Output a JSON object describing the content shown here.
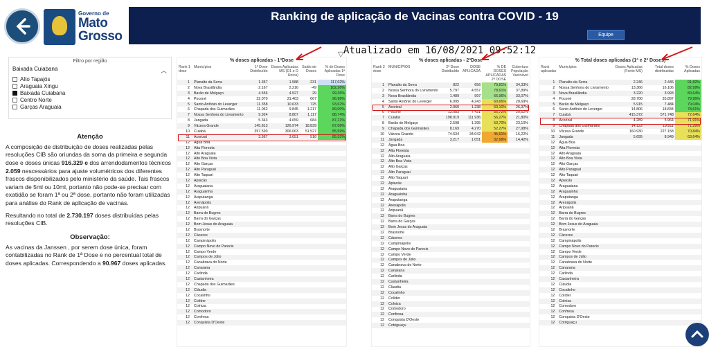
{
  "header": {
    "gov_small": "Governo de",
    "gov_line1": "Mato",
    "gov_line2": "Grosso",
    "title": "Ranking de aplicação de Vacinas contra COVID - 19",
    "equipe_label": "Equipe",
    "updated": "Atualizado em 16/08/2021 09:52:12"
  },
  "filter": {
    "title": "Filtro por região",
    "selected": "Baixada Cuiabana",
    "items": [
      {
        "label": "Alto Tapajós",
        "checked": false
      },
      {
        "label": "Araguaia Xingu",
        "checked": false
      },
      {
        "label": "Baixada Cuiabana",
        "checked": true
      },
      {
        "label": "Centro Norte",
        "checked": false
      },
      {
        "label": "Garças Araguaia",
        "checked": false
      }
    ]
  },
  "notes": {
    "atencao_title": "Atenção",
    "p1_a": "A composição de distribuição de doses realizadas pelas resoluções CIB são oriundas da soma da primeira e segunda dose e doses únicas ",
    "p1_b": "916.329 e",
    "p1_c": " dos arrendodamentos técnicos ",
    "p1_d": "2.059",
    "p1_e": " nescessários para ajuste volumétricos  dos diferentes frascos disponibilizados pelo ministério da saúde. Tais frascos variam de 5ml ou 10ml, portanto não pode-se precisar com exatidão se foram 1ª ou 2ª dose, portanto não foram utilizadas para análise do Rank de aplicação de vacinas.",
    "p2_a": "Resultando no total de ",
    "p2_b": "2.730.197",
    "p2_c": " doses distribuídas pelas resoluções CIB.",
    "obs_title": "Observação:",
    "p3_a": "  As vacinas da Janssen , por serem dose única, foram contabilizadas no Rank de 1ª Dose e no percentual total de doses aplicadas. Correspondendo a ",
    "p3_b": "90.967",
    "p3_c": " doses aplicadas."
  },
  "table1": {
    "title": "% doses aplicadas - 1ªDose",
    "headers": [
      "Rank 1 dose",
      "Municípios",
      "1ª Dose Distribuído",
      "Doses Aplicadas MS (D1 e D Única)",
      "Saldo de Doses",
      "% de Doses Aplicadas 1ª Dose"
    ],
    "rows": [
      [
        "1",
        "Planalto da Serra",
        "1.357",
        "1.588",
        "-231",
        "117,02%",
        "c-blue"
      ],
      [
        "2",
        "Nova Brasilândia",
        "2.167",
        "2.216",
        "-49",
        "102,26%",
        "c-green"
      ],
      [
        "3",
        "Barão de Melgaço",
        "4.556",
        "4.527",
        "29",
        "99,36%",
        "c-green"
      ],
      [
        "4",
        "Poconé",
        "22.070",
        "21.403",
        "667",
        "96,98%",
        "c-green"
      ],
      [
        "5",
        "Santo Antônio do Leverger",
        "11.358",
        "10.633",
        "725",
        "93,62%",
        "c-green"
      ],
      [
        "6",
        "Chapada dos Guimarães",
        "11.062",
        "9.845",
        "1.217",
        "89,00%",
        "c-green"
      ],
      [
        "7",
        "Nossa Senhora do Livramento",
        "9.924",
        "8.807",
        "1.117",
        "88,74%",
        "c-green"
      ],
      [
        "8",
        "Jangada",
        "5.343",
        "4.659",
        "684",
        "87,21%",
        "c-green"
      ],
      [
        "9",
        "Várzea Grande",
        "145.813",
        "126.974",
        "18.839",
        "87,08%",
        "c-green"
      ],
      [
        "10",
        "Cuiabá",
        "357.590",
        "306.063",
        "51.527",
        "85,59%",
        "c-green"
      ],
      [
        "11",
        "Acorizal",
        "3.567",
        "3.051",
        "516",
        "85,53%",
        "c-green"
      ],
      [
        "12",
        "Água Boa",
        "",
        "",
        "",
        "",
        ""
      ],
      [
        "12",
        "Alta Floresta",
        "",
        "",
        "",
        "",
        ""
      ],
      [
        "12",
        "Alto Araguaia",
        "",
        "",
        "",
        "",
        ""
      ],
      [
        "12",
        "Alto Boa Vista",
        "",
        "",
        "",
        "",
        ""
      ],
      [
        "12",
        "Alto Garças",
        "",
        "",
        "",
        "",
        ""
      ],
      [
        "12",
        "Alto Paraguai",
        "",
        "",
        "",
        "",
        ""
      ],
      [
        "12",
        "Alto Taquari",
        "",
        "",
        "",
        "",
        ""
      ],
      [
        "12",
        "Apiacás",
        "",
        "",
        "",
        "",
        ""
      ],
      [
        "12",
        "Araguaiana",
        "",
        "",
        "",
        "",
        ""
      ],
      [
        "12",
        "Araguainha",
        "",
        "",
        "",
        "",
        ""
      ],
      [
        "12",
        "Araputanga",
        "",
        "",
        "",
        "",
        ""
      ],
      [
        "12",
        "Arenápolis",
        "",
        "",
        "",
        "",
        ""
      ],
      [
        "12",
        "Aripuanã",
        "",
        "",
        "",
        "",
        ""
      ],
      [
        "12",
        "Barra do Bugres",
        "",
        "",
        "",
        "",
        ""
      ],
      [
        "12",
        "Barra do Garças",
        "",
        "",
        "",
        "",
        ""
      ],
      [
        "12",
        "Bom Jesus do Araguaia",
        "",
        "",
        "",
        "",
        ""
      ],
      [
        "12",
        "Brasnorte",
        "",
        "",
        "",
        "",
        ""
      ],
      [
        "12",
        "Cáceres",
        "",
        "",
        "",
        "",
        ""
      ],
      [
        "12",
        "Campinápolis",
        "",
        "",
        "",
        "",
        ""
      ],
      [
        "12",
        "Campo Novo do Parecis",
        "",
        "",
        "",
        "",
        ""
      ],
      [
        "12",
        "Campo Verde",
        "",
        "",
        "",
        "",
        ""
      ],
      [
        "12",
        "Campos de Júlio",
        "",
        "",
        "",
        "",
        ""
      ],
      [
        "12",
        "Canabrava do Norte",
        "",
        "",
        "",
        "",
        ""
      ],
      [
        "12",
        "Canarana",
        "",
        "",
        "",
        "",
        ""
      ],
      [
        "12",
        "Carlinda",
        "",
        "",
        "",
        "",
        ""
      ],
      [
        "12",
        "Castanheira",
        "",
        "",
        "",
        "",
        ""
      ],
      [
        "12",
        "Chapada dos Guimarães",
        "",
        "",
        "",
        "",
        ""
      ],
      [
        "12",
        "Cláudia",
        "",
        "",
        "",
        "",
        ""
      ],
      [
        "12",
        "Cocalinho",
        "",
        "",
        "",
        "",
        ""
      ],
      [
        "12",
        "Colíder",
        "",
        "",
        "",
        "",
        ""
      ],
      [
        "12",
        "Colniza",
        "",
        "",
        "",
        "",
        ""
      ],
      [
        "12",
        "Comodoro",
        "",
        "",
        "",
        "",
        ""
      ],
      [
        "12",
        "Confresa",
        "",
        "",
        "",
        "",
        ""
      ],
      [
        "12",
        "Conquista D'Oeste",
        "",
        "",
        "",
        "",
        ""
      ]
    ]
  },
  "table2": {
    "title": "% doses aplicadas - 2ªDose",
    "headers": [
      "Rank 2 dose",
      "MUNICÍPIOS",
      "2ª Dose Distribuído",
      "DOSE APLICADA",
      "% DE DOSES APLICADAS 2ª DOSE",
      "Cobertura População Vacinável"
    ],
    "rows": [
      [
        "1",
        "Planalto da Serra",
        "822",
        "656",
        "79,81%",
        "34,33%",
        "c-lgreen"
      ],
      [
        "2",
        "Nossa Senhora do Livramento",
        "5.797",
        "4.557",
        "78,61%",
        "37,89%",
        "c-lgreen"
      ],
      [
        "3",
        "Nova Brasilândia",
        "1.489",
        "997",
        "66,96%",
        "33,07%",
        "c-lgreen"
      ],
      [
        "4",
        "Santo Antônio do Leverger",
        "6.995",
        "4.243",
        "60,66%",
        "28,69%",
        "c-yellow"
      ],
      [
        "5",
        "Acorizal",
        "2.060",
        "1.238",
        "60,10%",
        "26,37%",
        "c-yellow"
      ],
      [
        "6",
        "Poconé",
        "13.083",
        "7.421",
        "56,72%",
        "20,62%",
        "c-yellow"
      ],
      [
        "7",
        "Cuiabá",
        "198.919",
        "111.936",
        "56,27%",
        "21,80%",
        "c-yellow"
      ],
      [
        "8",
        "Barão de Melgaço",
        "2.598",
        "1.395",
        "53,70%",
        "23,10%",
        "c-yellow"
      ],
      [
        "9",
        "Chapada dos Guimarães",
        "8.169",
        "4.270",
        "52,27%",
        "27,98%",
        "c-yellow"
      ],
      [
        "10",
        "Várzea Grande",
        "74.634",
        "34.042",
        "45,61%",
        "16,22%",
        "c-orange"
      ],
      [
        "11",
        "Jangada",
        "3.217",
        "1.051",
        "32,68%",
        "14,42%",
        "c-orange"
      ],
      [
        "12",
        "Água Boa",
        "",
        "",
        "",
        "",
        ""
      ],
      [
        "12",
        "Alta Floresta",
        "",
        "",
        "",
        "",
        ""
      ],
      [
        "12",
        "Alto Araguaia",
        "",
        "",
        "",
        "",
        ""
      ],
      [
        "12",
        "Alto Boa Vista",
        "",
        "",
        "",
        "",
        ""
      ],
      [
        "12",
        "Alto Garças",
        "",
        "",
        "",
        "",
        ""
      ],
      [
        "12",
        "Alto Paraguai",
        "",
        "",
        "",
        "",
        ""
      ],
      [
        "12",
        "Alto Taquari",
        "",
        "",
        "",
        "",
        ""
      ],
      [
        "12",
        "Apiacás",
        "",
        "",
        "",
        "",
        ""
      ],
      [
        "12",
        "Araguaiana",
        "",
        "",
        "",
        "",
        ""
      ],
      [
        "12",
        "Araguainha",
        "",
        "",
        "",
        "",
        ""
      ],
      [
        "12",
        "Araputanga",
        "",
        "",
        "",
        "",
        ""
      ],
      [
        "12",
        "Arenápolis",
        "",
        "",
        "",
        "",
        ""
      ],
      [
        "12",
        "Aripuanã",
        "",
        "",
        "",
        "",
        ""
      ],
      [
        "12",
        "Barra do Bugres",
        "",
        "",
        "",
        "",
        ""
      ],
      [
        "12",
        "Barra do Garças",
        "",
        "",
        "",
        "",
        ""
      ],
      [
        "12",
        "Bom Jesus do Araguaia",
        "",
        "",
        "",
        "",
        ""
      ],
      [
        "12",
        "Brasnorte",
        "",
        "",
        "",
        "",
        ""
      ],
      [
        "12",
        "Cáceres",
        "",
        "",
        "",
        "",
        ""
      ],
      [
        "12",
        "Campinápolis",
        "",
        "",
        "",
        "",
        ""
      ],
      [
        "12",
        "Campo Novo do Parecis",
        "",
        "",
        "",
        "",
        ""
      ],
      [
        "12",
        "Campo Verde",
        "",
        "",
        "",
        "",
        ""
      ],
      [
        "12",
        "Campos de Júlio",
        "",
        "",
        "",
        "",
        ""
      ],
      [
        "12",
        "Canabrava do Norte",
        "",
        "",
        "",
        "",
        ""
      ],
      [
        "12",
        "Canarana",
        "",
        "",
        "",
        "",
        ""
      ],
      [
        "12",
        "Carlinda",
        "",
        "",
        "",
        "",
        ""
      ],
      [
        "12",
        "Castanheira",
        "",
        "",
        "",
        "",
        ""
      ],
      [
        "12",
        "Cláudia",
        "",
        "",
        "",
        "",
        ""
      ],
      [
        "12",
        "Cocalinho",
        "",
        "",
        "",
        "",
        ""
      ],
      [
        "12",
        "Colíder",
        "",
        "",
        "",
        "",
        ""
      ],
      [
        "12",
        "Colniza",
        "",
        "",
        "",
        "",
        ""
      ],
      [
        "12",
        "Comodoro",
        "",
        "",
        "",
        "",
        ""
      ],
      [
        "12",
        "Confresa",
        "",
        "",
        "",
        "",
        ""
      ],
      [
        "12",
        "Conquista D'Oeste",
        "",
        "",
        "",
        "",
        ""
      ],
      [
        "12",
        "Cotriguaçu",
        "",
        "",
        "",
        "",
        ""
      ]
    ]
  },
  "table3": {
    "title": "% Total doses aplicadas (1ª e 2ª Doses)",
    "headers": [
      "Rank aplicadas",
      "Municípios",
      "Doses Aplicadas (Fonte MS)",
      "Total doses distribuidas",
      "% Doses Aplicadas"
    ],
    "rows": [
      [
        "1",
        "Planalto da Serra",
        "2.246",
        "2.446",
        "91,82%",
        "c-green"
      ],
      [
        "2",
        "Nossa Senhora do Livramento",
        "13.366",
        "16.106",
        "82,99%",
        "c-green"
      ],
      [
        "3",
        "Nova Brasilândia",
        "3.220",
        "3.993",
        "80,64%",
        "c-green"
      ],
      [
        "4",
        "Poconé",
        "28.700",
        "35.897",
        "79,95%",
        "c-green"
      ],
      [
        "5",
        "Barão de Melgaço",
        "5.915",
        "7.484",
        "79,04%",
        "c-green"
      ],
      [
        "6",
        "Santo Antônio do Leverger",
        "14.806",
        "18.834",
        "78,61%",
        "c-green"
      ],
      [
        "7",
        "Cuiabá",
        "415.372",
        "571.748",
        "72,64%",
        "c-yellow"
      ],
      [
        "8",
        "Acorizal",
        "4.289",
        "5.964",
        "71,91%",
        "c-yellow"
      ],
      [
        "9",
        "Chapada dos Guimarães",
        "14.122",
        "19.811",
        "71,28%",
        "c-yellow"
      ],
      [
        "10",
        "Várzea Grande",
        "160.930",
        "227.158",
        "70,84%",
        "c-yellow"
      ],
      [
        "11",
        "Jangada",
        "5.695",
        "8.949",
        "63,64%",
        "c-yellow"
      ],
      [
        "12",
        "Água Boa",
        "",
        "",
        "",
        ""
      ],
      [
        "12",
        "Alta Floresta",
        "",
        "",
        "",
        ""
      ],
      [
        "12",
        "Alto Araguaia",
        "",
        "",
        "",
        ""
      ],
      [
        "12",
        "Alto Boa Vista",
        "",
        "",
        "",
        ""
      ],
      [
        "12",
        "Alto Garças",
        "",
        "",
        "",
        ""
      ],
      [
        "12",
        "Alto Paraguai",
        "",
        "",
        "",
        ""
      ],
      [
        "12",
        "Alto Taquari",
        "",
        "",
        "",
        ""
      ],
      [
        "12",
        "Apiacás",
        "",
        "",
        "",
        ""
      ],
      [
        "12",
        "Araguaiana",
        "",
        "",
        "",
        ""
      ],
      [
        "12",
        "Araguainha",
        "",
        "",
        "",
        ""
      ],
      [
        "12",
        "Araputanga",
        "",
        "",
        "",
        ""
      ],
      [
        "12",
        "Arenápolis",
        "",
        "",
        "",
        ""
      ],
      [
        "12",
        "Aripuanã",
        "",
        "",
        "",
        ""
      ],
      [
        "12",
        "Barra do Bugres",
        "",
        "",
        "",
        ""
      ],
      [
        "12",
        "Barra do Garças",
        "",
        "",
        "",
        ""
      ],
      [
        "12",
        "Bom Jesus do Araguaia",
        "",
        "",
        "",
        ""
      ],
      [
        "12",
        "Brasnorte",
        "",
        "",
        "",
        ""
      ],
      [
        "12",
        "Cáceres",
        "",
        "",
        "",
        ""
      ],
      [
        "12",
        "Campinápolis",
        "",
        "",
        "",
        ""
      ],
      [
        "12",
        "Campo Novo do Parecis",
        "",
        "",
        "",
        ""
      ],
      [
        "12",
        "Campo Verde",
        "",
        "",
        "",
        ""
      ],
      [
        "12",
        "Campos de Júlio",
        "",
        "",
        "",
        ""
      ],
      [
        "12",
        "Canabrava do Norte",
        "",
        "",
        "",
        ""
      ],
      [
        "12",
        "Canarana",
        "",
        "",
        "",
        ""
      ],
      [
        "12",
        "Carlinda",
        "",
        "",
        "",
        ""
      ],
      [
        "12",
        "Castanheira",
        "",
        "",
        "",
        ""
      ],
      [
        "12",
        "Cláudia",
        "",
        "",
        "",
        ""
      ],
      [
        "12",
        "Cocalinho",
        "",
        "",
        "",
        ""
      ],
      [
        "12",
        "Colíder",
        "",
        "",
        "",
        ""
      ],
      [
        "12",
        "Colniza",
        "",
        "",
        "",
        ""
      ],
      [
        "12",
        "Comodoro",
        "",
        "",
        "",
        ""
      ],
      [
        "12",
        "Confresa",
        "",
        "",
        "",
        ""
      ],
      [
        "12",
        "Conquista D'Oeste",
        "",
        "",
        "",
        ""
      ],
      [
        "12",
        "Cotriguaçu",
        "",
        "",
        "",
        ""
      ]
    ]
  }
}
